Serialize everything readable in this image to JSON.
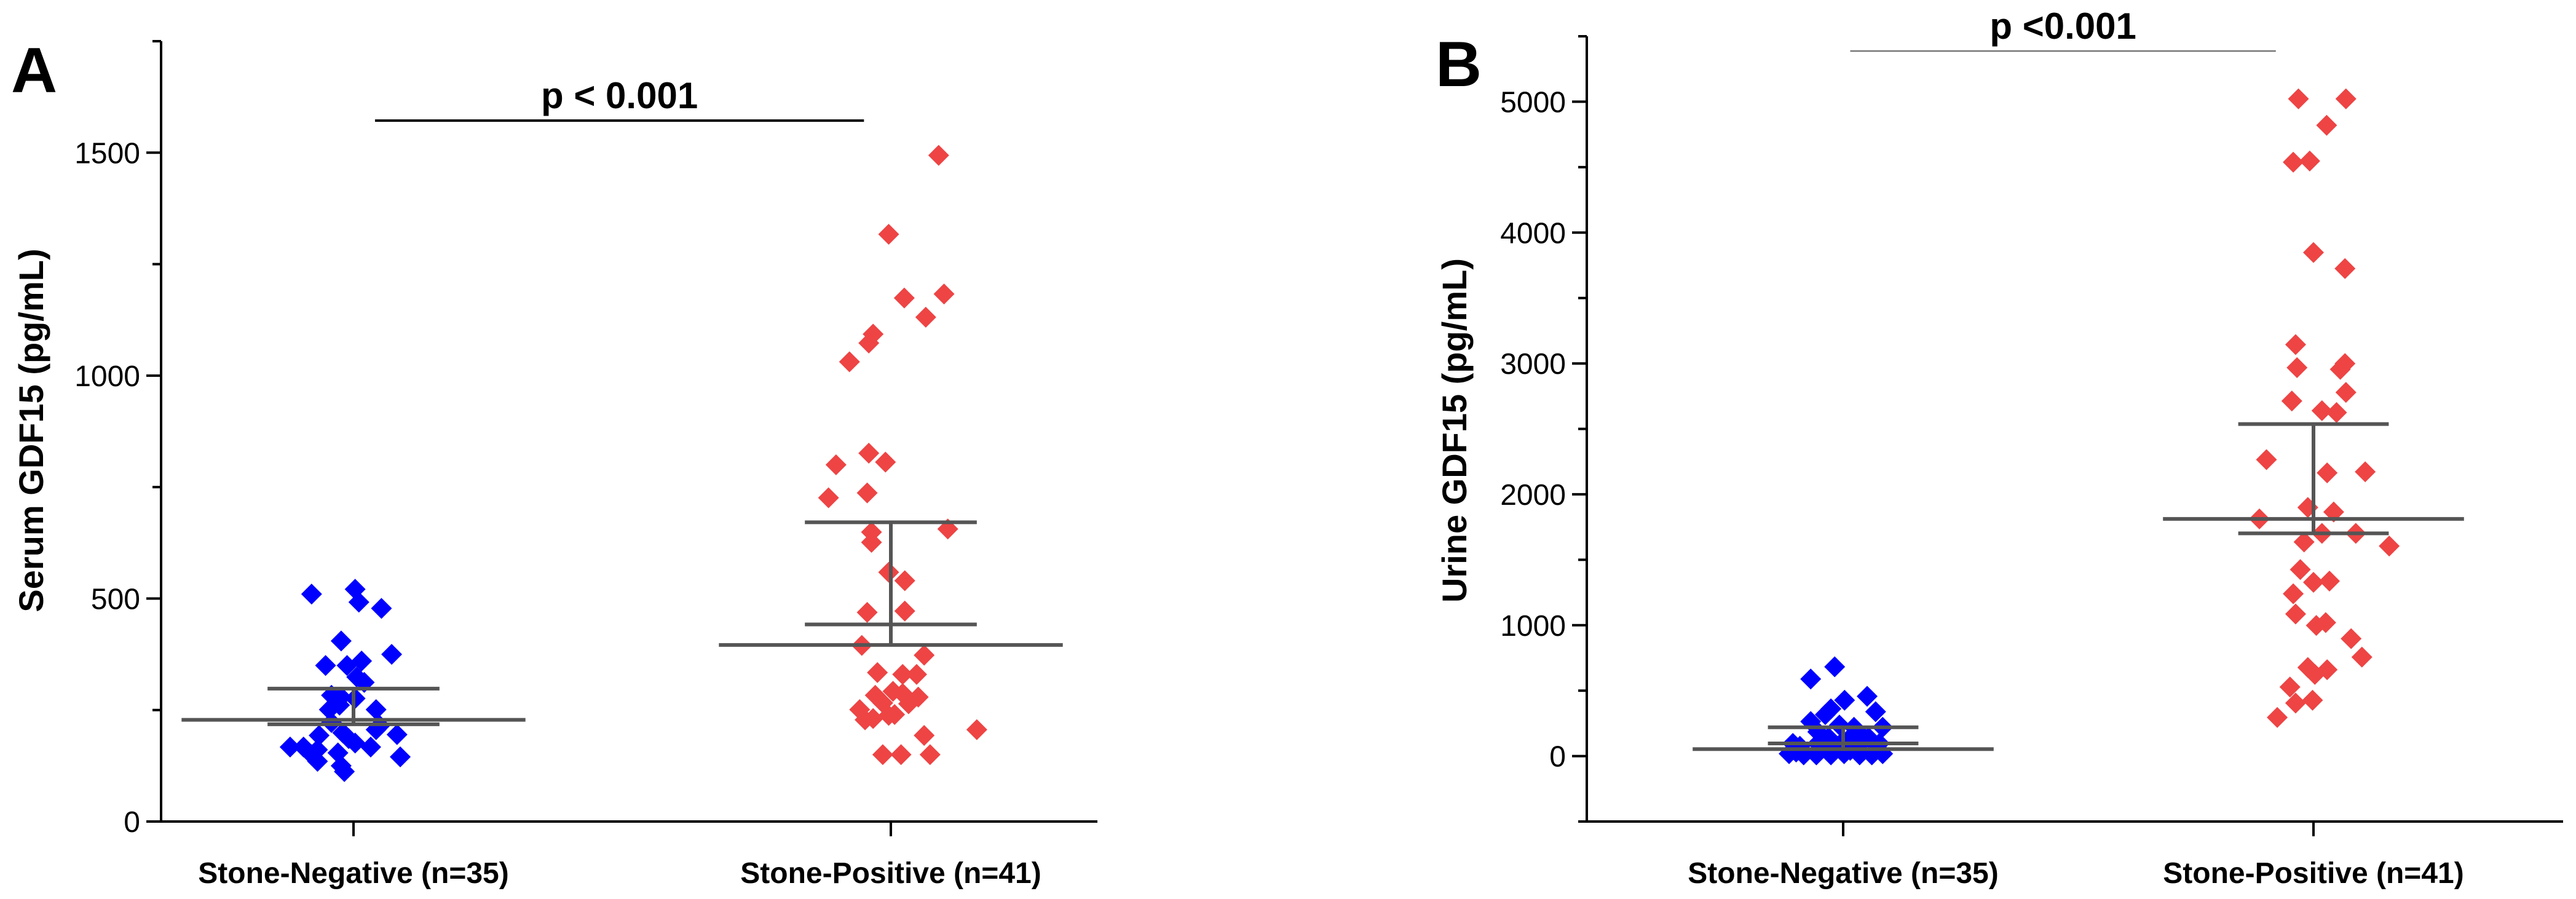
{
  "colors": {
    "negative": "#0000ff",
    "positive": "#ee4444",
    "stat_line": "#555555",
    "axis": "#000000"
  },
  "chart_data": [
    {
      "type": "scatter",
      "panel_label": "A",
      "ylabel": "Serum GDF15 (pg/mL)",
      "xlabel": "",
      "ylim": [
        0,
        1750
      ],
      "yticks": [
        0,
        500,
        1000,
        1500
      ],
      "yticks_minor_step": 250,
      "grid": false,
      "categories": [
        "Stone-Negative (n=35)",
        "Stone-Positive (n=41)"
      ],
      "significance": {
        "text": "p < 0.001",
        "y": 1572,
        "x_from": 0.04,
        "x_to": 0.95
      },
      "series": [
        {
          "name": "Stone-Negative",
          "category": 0,
          "color": "#0000ff",
          "points": [
            [
              -0.078,
              510
            ],
            [
              0.003,
              521
            ],
            [
              0.01,
              492
            ],
            [
              0.052,
              478
            ],
            [
              -0.023,
              405
            ],
            [
              0.071,
              375
            ],
            [
              -0.052,
              350
            ],
            [
              -0.012,
              350
            ],
            [
              0.015,
              360
            ],
            [
              0.006,
              324
            ],
            [
              -0.041,
              283
            ],
            [
              0.003,
              276
            ],
            [
              -0.045,
              251
            ],
            [
              0.042,
              251
            ],
            [
              -0.023,
              279
            ],
            [
              -0.064,
              193
            ],
            [
              -0.02,
              199
            ],
            [
              0.042,
              206
            ],
            [
              0.081,
              195
            ],
            [
              -0.118,
              167
            ],
            [
              -0.093,
              167
            ],
            [
              0.003,
              176
            ],
            [
              0.032,
              167
            ],
            [
              -0.067,
              135
            ],
            [
              -0.029,
              154
            ],
            [
              -0.023,
              125
            ],
            [
              -0.017,
              112
            ],
            [
              0.087,
              145
            ],
            [
              -0.078,
              150
            ],
            [
              0.049,
              215
            ],
            [
              -0.041,
              222
            ],
            [
              0.02,
              312
            ],
            [
              -0.026,
              261
            ],
            [
              -0.067,
              161
            ],
            [
              -0.009,
              186
            ]
          ],
          "center": 228,
          "upper": 298,
          "lower": 218
        },
        {
          "name": "Stone-Positive",
          "category": 1,
          "color": "#ee4444",
          "points": [
            [
              0.089,
              1494
            ],
            [
              -0.004,
              1317
            ],
            [
              0.025,
              1174
            ],
            [
              0.099,
              1183
            ],
            [
              0.065,
              1131
            ],
            [
              -0.033,
              1093
            ],
            [
              -0.041,
              1073
            ],
            [
              -0.077,
              1031
            ],
            [
              -0.102,
              800
            ],
            [
              -0.041,
              826
            ],
            [
              -0.01,
              806
            ],
            [
              -0.116,
              726
            ],
            [
              -0.044,
              737
            ],
            [
              0.106,
              656
            ],
            [
              -0.036,
              649
            ],
            [
              -0.036,
              626
            ],
            [
              -0.004,
              559
            ],
            [
              0.026,
              540
            ],
            [
              -0.044,
              469
            ],
            [
              0.026,
              472
            ],
            [
              -0.054,
              395
            ],
            [
              0.062,
              373
            ],
            [
              -0.025,
              334
            ],
            [
              0.022,
              330
            ],
            [
              0.048,
              330
            ],
            [
              -0.029,
              283
            ],
            [
              0.022,
              287
            ],
            [
              0.051,
              279
            ],
            [
              0.033,
              264
            ],
            [
              -0.033,
              231
            ],
            [
              -0.004,
              238
            ],
            [
              0.007,
              240
            ],
            [
              0.16,
              206
            ],
            [
              0.062,
              193
            ],
            [
              -0.015,
              150
            ],
            [
              0.019,
              150
            ],
            [
              0.073,
              150
            ],
            [
              -0.048,
              228
            ],
            [
              -0.015,
              266
            ],
            [
              0.004,
              292
            ],
            [
              -0.058,
              251
            ]
          ],
          "center": 396,
          "upper": 671,
          "lower": 442
        }
      ]
    },
    {
      "type": "scatter",
      "panel_label": "B",
      "ylabel": "Urine GDF15 (pg/mL)",
      "xlabel": "",
      "ylim": [
        -500,
        5500
      ],
      "yticks": [
        0,
        1000,
        2000,
        3000,
        4000,
        5000
      ],
      "yticks_minor_step": 500,
      "grid": false,
      "categories": [
        "Stone-Negative (n=35)",
        "Stone-Positive (n=41)"
      ],
      "significance": {
        "text": "p <0.001",
        "y": 5387,
        "x_from": 0.015,
        "x_to": 0.92
      },
      "series": [
        {
          "name": "Stone-Negative",
          "category": 0,
          "color": "#0000ff",
          "points": [
            [
              -0.018,
              682
            ],
            [
              -0.069,
              589
            ],
            [
              0.051,
              457
            ],
            [
              0.003,
              427
            ],
            [
              -0.026,
              361
            ],
            [
              -0.069,
              264
            ],
            [
              -0.038,
              317
            ],
            [
              0.069,
              339
            ],
            [
              -0.008,
              237
            ],
            [
              0.084,
              220
            ],
            [
              0.038,
              163
            ],
            [
              -0.031,
              141
            ],
            [
              0.015,
              141
            ],
            [
              -0.092,
              75
            ],
            [
              -0.054,
              97
            ],
            [
              -0.015,
              75
            ],
            [
              0.031,
              75
            ],
            [
              0.077,
              97
            ],
            [
              -0.115,
              18
            ],
            [
              -0.084,
              9
            ],
            [
              -0.057,
              9
            ],
            [
              -0.026,
              9
            ],
            [
              0.002,
              18
            ],
            [
              0.035,
              9
            ],
            [
              0.061,
              9
            ],
            [
              0.084,
              18
            ],
            [
              -0.038,
              53
            ],
            [
              -0.005,
              97
            ],
            [
              -0.107,
              97
            ],
            [
              0.054,
              141
            ],
            [
              -0.054,
              185
            ],
            [
              0.023,
              220
            ],
            [
              -0.1,
              31
            ],
            [
              0.015,
              44
            ],
            [
              0.072,
              53
            ]
          ],
          "center": 53,
          "upper": 220,
          "lower": 97
        },
        {
          "name": "Stone-Positive",
          "category": 1,
          "color": "#ee4444",
          "points": [
            [
              -0.032,
              5022
            ],
            [
              0.069,
              5022
            ],
            [
              0.028,
              4820
            ],
            [
              -0.043,
              4538
            ],
            [
              -0.008,
              4547
            ],
            [
              0,
              3848
            ],
            [
              0.067,
              3725
            ],
            [
              -0.038,
              3144
            ],
            [
              -0.035,
              2968
            ],
            [
              0.057,
              2955
            ],
            [
              0.067,
              2999
            ],
            [
              0.069,
              2779
            ],
            [
              -0.046,
              2713
            ],
            [
              0.018,
              2639
            ],
            [
              0.049,
              2625
            ],
            [
              -0.1,
              2265
            ],
            [
              0.029,
              2164
            ],
            [
              0.11,
              2172
            ],
            [
              -0.012,
              1900
            ],
            [
              0.043,
              1865
            ],
            [
              -0.115,
              1812
            ],
            [
              0.018,
              1702
            ],
            [
              0.09,
              1702
            ],
            [
              -0.02,
              1636
            ],
            [
              0.161,
              1605
            ],
            [
              -0.028,
              1425
            ],
            [
              0,
              1328
            ],
            [
              0.034,
              1337
            ],
            [
              -0.043,
              1240
            ],
            [
              -0.038,
              1086
            ],
            [
              0.006,
              998
            ],
            [
              0.026,
              1020
            ],
            [
              0.08,
              897
            ],
            [
              0.103,
              756
            ],
            [
              -0.012,
              677
            ],
            [
              0.003,
              624
            ],
            [
              0.029,
              660
            ],
            [
              -0.05,
              528
            ],
            [
              -0.038,
              405
            ],
            [
              -0.002,
              427
            ],
            [
              -0.077,
              295
            ]
          ],
          "center": 1812,
          "upper": 2537,
          "lower": 1702
        }
      ]
    }
  ]
}
